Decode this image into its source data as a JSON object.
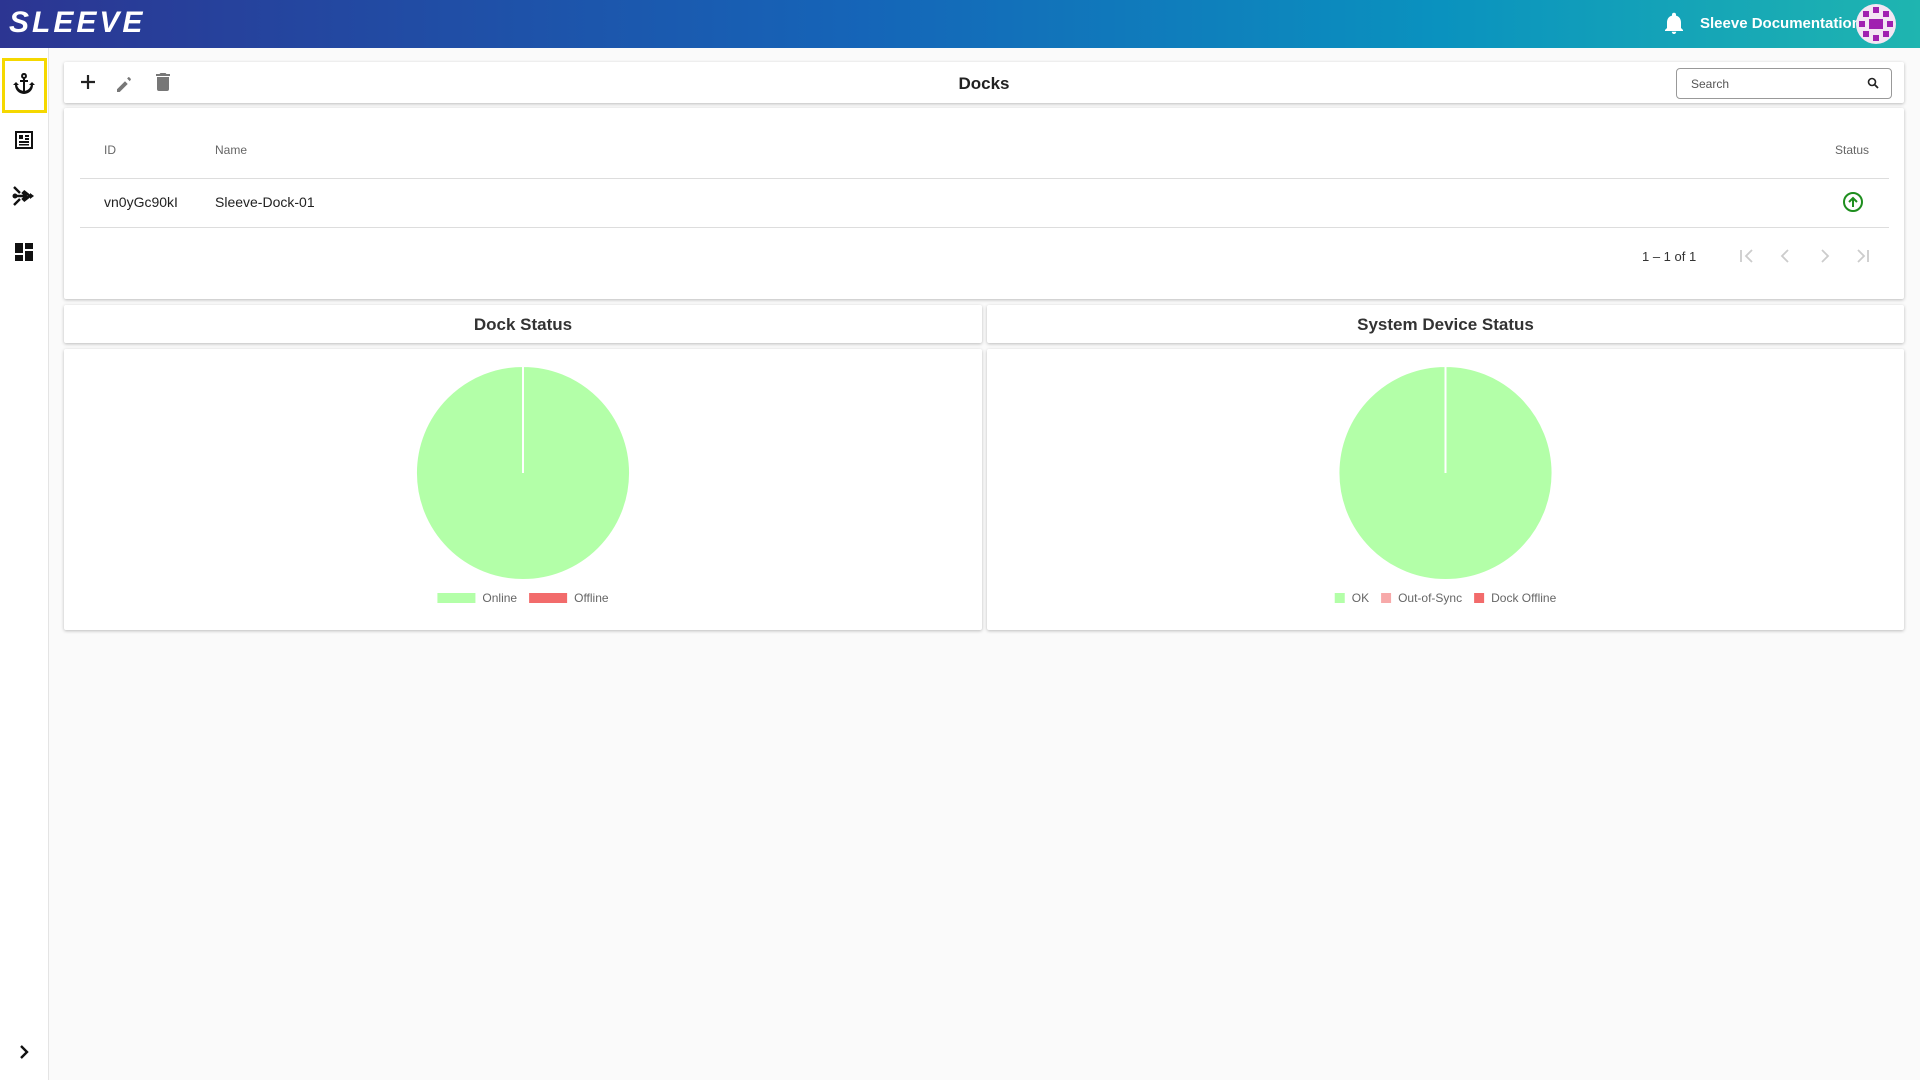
{
  "header": {
    "brand": "SLEEVE",
    "doc_link": "Sleeve Documentation"
  },
  "toolbar": {
    "title": "Docks",
    "search_placeholder": "Search"
  },
  "table": {
    "columns": [
      "ID",
      "Name",
      "Status"
    ],
    "rows": [
      [
        "vn0yGc90kI",
        "Sleeve-Dock-01"
      ]
    ],
    "pagination": "1 – 1 of 1"
  },
  "chart_data": [
    {
      "type": "pie",
      "title": "Dock Status",
      "categories": [
        "Online",
        "Offline"
      ],
      "values": [
        1,
        0
      ],
      "colors": [
        "#b3ffa8",
        "#f26b6b"
      ],
      "legend": "bottom",
      "legend_marker": "bar"
    },
    {
      "type": "pie",
      "title": "System Device Status",
      "categories": [
        "OK",
        "Out-of-Sync",
        "Dock Offline"
      ],
      "values": [
        1,
        0,
        0
      ],
      "colors": [
        "#b3ffa8",
        "#f7a9a9",
        "#f26b6b"
      ],
      "legend": "bottom",
      "legend_marker": "square"
    }
  ]
}
